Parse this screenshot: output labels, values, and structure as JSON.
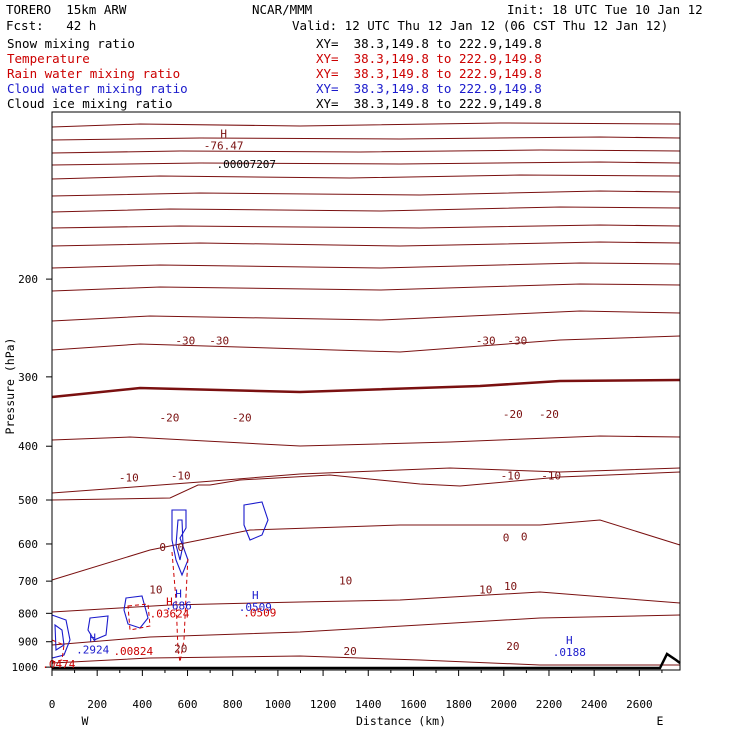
{
  "header": {
    "model": "TORERO  15km ARW",
    "org": "NCAR/MMM",
    "init": "Init: 18 UTC Tue 10 Jan 12",
    "fcst": "Fcst:   42 h",
    "valid": "Valid: 12 UTC Thu 12 Jan 12 (06 CST Thu 12 Jan 12)"
  },
  "legend": [
    {
      "field": "Snow mixing ratio",
      "xy": "XY=  38.3,149.8 to 222.9,149.8",
      "color": "#000000"
    },
    {
      "field": "Temperature",
      "xy": "XY=  38.3,149.8 to 222.9,149.8",
      "color": "#cc0000"
    },
    {
      "field": "Rain water mixing ratio",
      "xy": "XY=  38.3,149.8 to 222.9,149.8",
      "color": "#cc0000"
    },
    {
      "field": "Cloud water mixing ratio",
      "xy": "XY=  38.3,149.8 to 222.9,149.8",
      "color": "#1a1acc"
    },
    {
      "field": "Cloud ice mixing ratio",
      "xy": "XY=  38.3,149.8 to 222.9,149.8",
      "color": "#000000"
    }
  ],
  "colors": {
    "temperature": "#7a1010",
    "rain": "#cc0000",
    "cloud_water": "#1a1acc",
    "snow": "#000000",
    "terrain": "#000000"
  },
  "chart_data": {
    "type": "contour-cross-section",
    "xlabel": "Distance (km)",
    "ylabel": "Pressure (hPa)",
    "xlim": [
      0,
      2780
    ],
    "ylim": [
      1012,
      100
    ],
    "y_log": true,
    "x_ticks": [
      "0",
      "200",
      "400",
      "600",
      "800",
      "1000",
      "1200",
      "1400",
      "1600",
      "1800",
      "2000",
      "2200",
      "2400",
      "2600"
    ],
    "y_ticks": [
      "200",
      "300",
      "400",
      "500",
      "600",
      "700",
      "800",
      "900",
      "1000"
    ],
    "x_end_labels": {
      "left": "W",
      "right": "E"
    },
    "temperature_isotherm_labels": [
      {
        "value": "-30",
        "x": 590,
        "p": 258
      },
      {
        "value": "-30",
        "x": 740,
        "p": 258
      },
      {
        "value": "-30",
        "x": 1920,
        "p": 258
      },
      {
        "value": "-30",
        "x": 2060,
        "p": 258
      },
      {
        "value": "-20",
        "x": 520,
        "p": 355
      },
      {
        "value": "-20",
        "x": 840,
        "p": 355
      },
      {
        "value": "-20",
        "x": 2040,
        "p": 350
      },
      {
        "value": "-20",
        "x": 2200,
        "p": 350
      },
      {
        "value": "-10",
        "x": 340,
        "p": 455
      },
      {
        "value": "-10",
        "x": 570,
        "p": 452
      },
      {
        "value": "-10",
        "x": 2030,
        "p": 452
      },
      {
        "value": "-10",
        "x": 2210,
        "p": 452
      },
      {
        "value": "0",
        "x": 490,
        "p": 608
      },
      {
        "value": "0",
        "x": 570,
        "p": 608
      },
      {
        "value": "0",
        "x": 2010,
        "p": 584
      },
      {
        "value": "0",
        "x": 2090,
        "p": 582
      },
      {
        "value": "10",
        "x": 460,
        "p": 724
      },
      {
        "value": "10",
        "x": 1300,
        "p": 698
      },
      {
        "value": "10",
        "x": 1920,
        "p": 724
      },
      {
        "value": "10",
        "x": 2030,
        "p": 714
      },
      {
        "value": "20",
        "x": 570,
        "p": 925
      },
      {
        "value": "20",
        "x": 1320,
        "p": 935
      },
      {
        "value": "20",
        "x": 2040,
        "p": 917
      }
    ],
    "extrema_labels": [
      {
        "mark": "H",
        "value": "-76.47",
        "x": 760,
        "p": 115,
        "color": "#7a1010"
      },
      {
        "mark": "",
        "value": ".00007207",
        "x": 860,
        "p": 124,
        "color": "#000000"
      },
      {
        "mark": "H",
        "value": ".686",
        "x": 560,
        "p": 775,
        "color": "#1a1acc"
      },
      {
        "mark": "H",
        "value": ".03624",
        "x": 520,
        "p": 800,
        "color": "#cc0000"
      },
      {
        "mark": "H",
        "value": ".0509",
        "x": 900,
        "p": 780,
        "color": "#1a1acc"
      },
      {
        "mark": "",
        "value": ".0509",
        "x": 920,
        "p": 797,
        "color": "#cc0000"
      },
      {
        "mark": "H",
        "value": ".2924",
        "x": 180,
        "p": 930,
        "color": "#1a1acc"
      },
      {
        "mark": "",
        "value": ".00824",
        "x": 360,
        "p": 936,
        "color": "#cc0000"
      },
      {
        "mark": "",
        "value": ".0474",
        "x": 30,
        "p": 988,
        "color": "#cc0000"
      },
      {
        "mark": "H",
        "value": ".0188",
        "x": 2290,
        "p": 940,
        "color": "#1a1acc"
      }
    ]
  }
}
